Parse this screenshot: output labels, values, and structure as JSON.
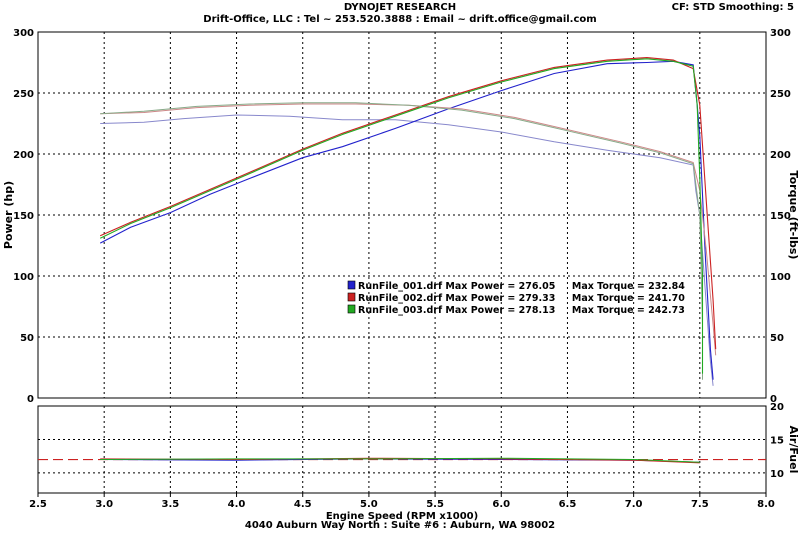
{
  "header": {
    "title": "DYNOJET RESEARCH",
    "subtitle": "Drift-Office, LLC : Tel ~ 253.520.3888 : Email ~ drift.office@gmail.com",
    "cf_info": "CF: STD  Smoothing: 5"
  },
  "footer": {
    "address": "4040 Auburn Way North : Suite #6 : Auburn, WA 98002"
  },
  "chart_data": {
    "type": "line",
    "main": {
      "ylabel_left": "Power (hp)",
      "ylabel_right": "Torque (ft-lbs)",
      "ylim": [
        0,
        300
      ],
      "yticks": [
        0,
        50,
        100,
        150,
        200,
        250,
        300
      ],
      "grid": true
    },
    "afr": {
      "ylabel_right": "Air/Fuel",
      "ylim": [
        7,
        20
      ],
      "yticks": [
        10,
        15,
        20
      ],
      "reference": 12,
      "grid": true
    },
    "x": {
      "label": "Engine Speed (RPM x1000)",
      "lim": [
        2.5,
        8.0
      ],
      "ticks": [
        "2.5",
        "3.0",
        "3.5",
        "4.0",
        "4.5",
        "5.0",
        "5.5",
        "6.0",
        "6.5",
        "7.0",
        "7.5",
        "8.0"
      ]
    },
    "series": [
      {
        "name": "RunFile_001.drf",
        "color": "#2222cc",
        "torque_color": "#8888cc",
        "legend_text": "RunFile_001.drf Max Power = 276.05     Max Torque = 232.84",
        "power": [
          [
            2.97,
            127
          ],
          [
            3.2,
            140
          ],
          [
            3.5,
            152
          ],
          [
            3.8,
            167
          ],
          [
            4.1,
            180
          ],
          [
            4.5,
            197
          ],
          [
            4.8,
            206
          ],
          [
            5.2,
            221
          ],
          [
            5.6,
            237
          ],
          [
            6.0,
            252
          ],
          [
            6.4,
            266
          ],
          [
            6.8,
            274
          ],
          [
            7.1,
            275
          ],
          [
            7.3,
            276
          ],
          [
            7.45,
            273
          ],
          [
            7.48,
            240
          ],
          [
            7.5,
            215
          ],
          [
            7.54,
            120
          ],
          [
            7.58,
            40
          ],
          [
            7.6,
            15
          ]
        ],
        "torque": [
          [
            2.97,
            225
          ],
          [
            3.3,
            226
          ],
          [
            3.6,
            229
          ],
          [
            4.0,
            232
          ],
          [
            4.4,
            231
          ],
          [
            4.8,
            228
          ],
          [
            5.2,
            228
          ],
          [
            5.6,
            224
          ],
          [
            6.0,
            218
          ],
          [
            6.4,
            210
          ],
          [
            6.8,
            203
          ],
          [
            7.2,
            197
          ],
          [
            7.45,
            191
          ],
          [
            7.47,
            170
          ],
          [
            7.5,
            150
          ],
          [
            7.54,
            90
          ],
          [
            7.58,
            30
          ],
          [
            7.6,
            10
          ]
        ],
        "afr": [
          [
            2.97,
            12.0
          ],
          [
            4.0,
            11.9
          ],
          [
            5.0,
            12.1
          ],
          [
            6.0,
            12.0
          ],
          [
            7.0,
            11.9
          ],
          [
            7.5,
            11.6
          ]
        ]
      },
      {
        "name": "RunFile_002.drf",
        "color": "#cc2222",
        "torque_color": "#cc8888",
        "legend_text": "RunFile_002.drf Max Power = 279.33     Max Torque = 241.70",
        "power": [
          [
            2.97,
            133
          ],
          [
            3.2,
            144
          ],
          [
            3.5,
            157
          ],
          [
            3.8,
            171
          ],
          [
            4.1,
            185
          ],
          [
            4.5,
            204
          ],
          [
            4.8,
            217
          ],
          [
            5.2,
            232
          ],
          [
            5.6,
            247
          ],
          [
            6.0,
            260
          ],
          [
            6.4,
            271
          ],
          [
            6.8,
            277
          ],
          [
            7.1,
            279
          ],
          [
            7.3,
            277
          ],
          [
            7.45,
            270
          ],
          [
            7.5,
            240
          ],
          [
            7.55,
            160
          ],
          [
            7.6,
            80
          ],
          [
            7.62,
            40
          ]
        ],
        "torque": [
          [
            2.97,
            233
          ],
          [
            3.3,
            234
          ],
          [
            3.7,
            238
          ],
          [
            4.1,
            240
          ],
          [
            4.5,
            241
          ],
          [
            4.9,
            241
          ],
          [
            5.3,
            240
          ],
          [
            5.7,
            237
          ],
          [
            6.1,
            230
          ],
          [
            6.5,
            220
          ],
          [
            6.9,
            210
          ],
          [
            7.2,
            202
          ],
          [
            7.45,
            193
          ],
          [
            7.5,
            170
          ],
          [
            7.55,
            120
          ],
          [
            7.6,
            60
          ],
          [
            7.62,
            35
          ]
        ],
        "afr": [
          [
            2.97,
            12.1
          ],
          [
            4.0,
            12.0
          ],
          [
            5.0,
            12.2
          ],
          [
            6.0,
            12.1
          ],
          [
            7.0,
            11.9
          ],
          [
            7.5,
            11.5
          ]
        ]
      },
      {
        "name": "RunFile_003.drf",
        "color": "#22aa22",
        "torque_color": "#88aa88",
        "legend_text": "RunFile_003.drf Max Power = 278.13     Max Torque = 242.73",
        "power": [
          [
            2.97,
            131
          ],
          [
            3.2,
            143
          ],
          [
            3.5,
            156
          ],
          [
            3.8,
            170
          ],
          [
            4.1,
            184
          ],
          [
            4.5,
            203
          ],
          [
            4.8,
            216
          ],
          [
            5.2,
            231
          ],
          [
            5.6,
            246
          ],
          [
            6.0,
            259
          ],
          [
            6.4,
            270
          ],
          [
            6.8,
            276
          ],
          [
            7.1,
            278
          ],
          [
            7.3,
            276
          ],
          [
            7.45,
            272
          ],
          [
            7.48,
            240
          ],
          [
            7.5,
            180
          ],
          [
            7.52,
            100
          ],
          [
            7.52,
            20
          ]
        ],
        "torque": [
          [
            2.97,
            233
          ],
          [
            3.3,
            235
          ],
          [
            3.7,
            239
          ],
          [
            4.1,
            241
          ],
          [
            4.5,
            242
          ],
          [
            4.9,
            242
          ],
          [
            5.3,
            240
          ],
          [
            5.7,
            236
          ],
          [
            6.1,
            229
          ],
          [
            6.5,
            219
          ],
          [
            6.9,
            209
          ],
          [
            7.2,
            201
          ],
          [
            7.45,
            192
          ],
          [
            7.5,
            150
          ],
          [
            7.52,
            60
          ],
          [
            7.52,
            15
          ]
        ],
        "afr": [
          [
            2.97,
            12.0
          ],
          [
            4.0,
            12.1
          ],
          [
            5.0,
            12.1
          ],
          [
            6.0,
            12.2
          ],
          [
            7.0,
            12.0
          ],
          [
            7.5,
            11.6
          ]
        ]
      }
    ]
  }
}
